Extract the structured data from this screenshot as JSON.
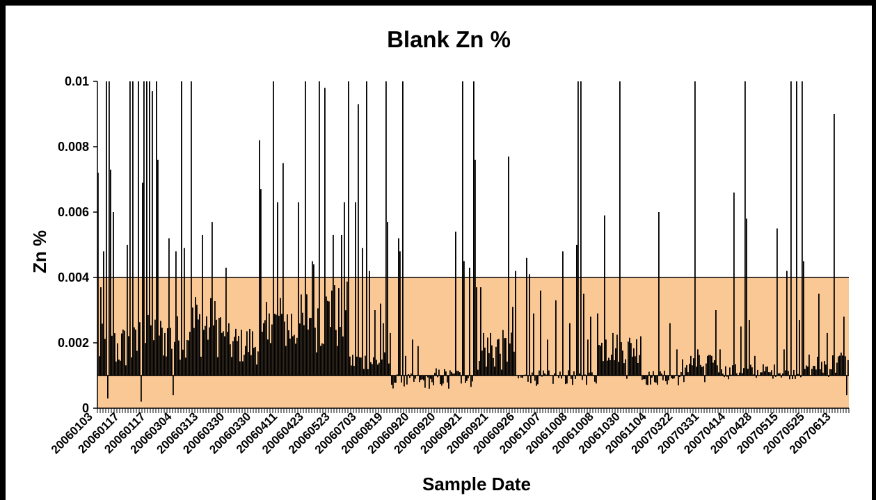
{
  "chart_data": {
    "type": "bar",
    "title": "Blank Zn %",
    "xlabel": "Sample Date",
    "ylabel": "Zn %",
    "ylim": [
      0,
      0.01
    ],
    "yticks": [
      "0",
      "0.002",
      "0.004",
      "0.006",
      "0.008",
      "0.01"
    ],
    "ytick_values": [
      0,
      0.002,
      0.004,
      0.006,
      0.008,
      0.01
    ],
    "x_tick_labels": [
      "20060103",
      "20060117",
      "20060117",
      "20060304",
      "20060313",
      "20060330",
      "20060330",
      "20060411",
      "20060423",
      "20060523",
      "20060703",
      "20060819",
      "20060920",
      "20060920",
      "20060921",
      "20060921",
      "20060926",
      "20061007",
      "20061008",
      "20061008",
      "20061030",
      "20061104",
      "20070322",
      "20070331",
      "20070414",
      "20070428",
      "20070515",
      "20070525",
      "20070613"
    ],
    "bands": [
      {
        "name": "control-limit-band",
        "from": 0,
        "to": 0.004,
        "color": "#FAC895"
      }
    ],
    "reference_lines": [
      0.001,
      0.004
    ],
    "bar_color": "#000000",
    "background_color": "#ffffff",
    "grid": false,
    "legend": "none",
    "segments": [
      {
        "base": 0.0018,
        "var": 0.0009,
        "spikes": [
          [
            0.0,
            0.0072
          ],
          [
            0.004,
            0.0037
          ],
          [
            0.008,
            0.0048
          ],
          [
            0.012,
            0.01
          ],
          [
            0.015,
            0.01
          ],
          [
            0.018,
            0.0073
          ],
          [
            0.022,
            0.006
          ],
          [
            0.013,
            0.0003
          ]
        ]
      },
      {
        "base": 0.0021,
        "var": 0.0009,
        "spikes": [
          [
            0.04,
            0.005
          ],
          [
            0.045,
            0.01
          ],
          [
            0.048,
            0.01
          ],
          [
            0.056,
            0.01
          ],
          [
            0.062,
            0.0069
          ],
          [
            0.065,
            0.01
          ],
          [
            0.068,
            0.01
          ],
          [
            0.072,
            0.01
          ],
          [
            0.075,
            0.0097
          ],
          [
            0.082,
            0.01
          ],
          [
            0.084,
            0.0076
          ],
          [
            0.06,
            0.0002
          ]
        ]
      },
      {
        "base": 0.0024,
        "var": 0.0012,
        "spikes": [
          [
            0.1,
            0.0052
          ],
          [
            0.106,
            0.0062
          ],
          [
            0.11,
            0.0048
          ],
          [
            0.116,
            0.01
          ],
          [
            0.121,
            0.0049
          ],
          [
            0.13,
            0.01
          ],
          [
            0.136,
            0.0034
          ],
          [
            0.147,
            0.0053
          ],
          [
            0.16,
            0.0057
          ],
          [
            0.105,
            0.0004
          ]
        ]
      },
      {
        "base": 0.0019,
        "var": 0.0008,
        "spikes": [
          [
            0.18,
            0.0043
          ],
          [
            0.2,
            0.0024
          ],
          [
            0.225,
            0.0082
          ],
          [
            0.227,
            0.0067
          ],
          [
            0.24,
            0.0029
          ],
          [
            0.245,
            0.01
          ],
          [
            0.252,
            0.0063
          ],
          [
            0.26,
            0.0075
          ]
        ]
      },
      {
        "base": 0.0024,
        "var": 0.0013,
        "spikes": [
          [
            0.28,
            0.0063
          ],
          [
            0.29,
            0.01
          ],
          [
            0.3,
            0.0045
          ],
          [
            0.302,
            0.0044
          ],
          [
            0.31,
            0.01
          ],
          [
            0.318,
            0.0098
          ],
          [
            0.327,
            0.0036
          ],
          [
            0.33,
            0.0053
          ],
          [
            0.34,
            0.0041
          ],
          [
            0.345,
            0.0063
          ]
        ]
      },
      {
        "base": 0.0027,
        "var": 0.0014,
        "spikes": [
          [
            0.34,
            0.0053
          ],
          [
            0.35,
            0.01
          ],
          [
            0.36,
            0.0063
          ],
          [
            0.365,
            0.0093
          ],
          [
            0.37,
            0.0049
          ],
          [
            0.375,
            0.01
          ],
          [
            0.38,
            0.0042
          ],
          [
            0.388,
            0.003
          ],
          [
            0.395,
            0.0032
          ],
          [
            0.4,
            0.0026
          ]
        ]
      },
      {
        "base": 0.0014,
        "var": 0.0004,
        "spikes": [
          [
            0.405,
            0.0057
          ],
          [
            0.404,
            0.01
          ],
          [
            0.41,
            0.0023
          ],
          [
            0.42,
            0.0052
          ],
          [
            0.422,
            0.0048
          ],
          [
            0.427,
            0.01
          ],
          [
            0.43,
            0.0016
          ],
          [
            0.44,
            0.0021
          ],
          [
            0.448,
            0.0019
          ]
        ]
      },
      {
        "base": 0.0008,
        "var": 0.0003,
        "spikes": [
          [
            0.45,
            0.0008
          ],
          [
            0.47,
            0.0007
          ],
          [
            0.49,
            0.0006
          ],
          [
            0.5,
            0.0007
          ]
        ]
      },
      {
        "base": 0.0009,
        "var": 0.0004,
        "spikes": [
          [
            0.5,
            0.0054
          ],
          [
            0.51,
            0.01
          ],
          [
            0.513,
            0.0045
          ],
          [
            0.52,
            0.0043
          ],
          [
            0.525,
            0.01
          ],
          [
            0.53,
            0.0063
          ],
          [
            0.528,
            0.0076
          ],
          [
            0.535,
            0.0037
          ],
          [
            0.54,
            0.0023
          ]
        ]
      },
      {
        "base": 0.0017,
        "var": 0.0008,
        "spikes": [
          [
            0.53,
            0.0037
          ],
          [
            0.55,
            0.0023
          ],
          [
            0.56,
            0.0021
          ],
          [
            0.575,
            0.0077
          ],
          [
            0.58,
            0.0031
          ],
          [
            0.585,
            0.0042
          ]
        ]
      },
      {
        "base": 0.0009,
        "var": 0.0003,
        "spikes": [
          [
            0.6,
            0.0046
          ],
          [
            0.603,
            0.0041
          ],
          [
            0.61,
            0.0029
          ],
          [
            0.62,
            0.0036
          ],
          [
            0.63,
            0.0021
          ],
          [
            0.64,
            0.0033
          ]
        ]
      },
      {
        "base": 0.0009,
        "var": 0.0003,
        "spikes": [
          [
            0.65,
            0.0048
          ],
          [
            0.66,
            0.0026
          ],
          [
            0.67,
            0.005
          ],
          [
            0.672,
            0.01
          ],
          [
            0.675,
            0.01
          ],
          [
            0.68,
            0.0035
          ],
          [
            0.685,
            0.0021
          ]
        ]
      },
      {
        "base": 0.0018,
        "var": 0.0006,
        "spikes": [
          [
            0.69,
            0.0028
          ],
          [
            0.7,
            0.0029
          ],
          [
            0.71,
            0.0059
          ],
          [
            0.72,
            0.0023
          ],
          [
            0.73,
            0.01
          ],
          [
            0.712,
            0.0021
          ]
        ]
      },
      {
        "base": 0.0009,
        "var": 0.0003,
        "spikes": [
          [
            0.74,
            0.0009
          ],
          [
            0.76,
            0.0022
          ],
          [
            0.78,
            0.0008
          ],
          [
            0.785,
            0.006
          ],
          [
            0.8,
            0.0026
          ],
          [
            0.82,
            0.0008
          ]
        ]
      },
      {
        "base": 0.0013,
        "var": 0.0004,
        "spikes": [
          [
            0.81,
            0.0018
          ],
          [
            0.83,
            0.0016
          ],
          [
            0.835,
            0.01
          ],
          [
            0.84,
            0.0018
          ],
          [
            0.85,
            0.0008
          ],
          [
            0.86,
            0.0016
          ],
          [
            0.865,
            0.003
          ],
          [
            0.87,
            0.0011
          ]
        ]
      },
      {
        "base": 0.0011,
        "var": 0.0003,
        "spikes": [
          [
            0.87,
            0.0018
          ],
          [
            0.89,
            0.0066
          ],
          [
            0.9,
            0.0025
          ],
          [
            0.905,
            0.01
          ],
          [
            0.908,
            0.0058
          ],
          [
            0.912,
            0.0027
          ],
          [
            0.92,
            0.0016
          ],
          [
            0.93,
            0.0011
          ]
        ]
      },
      {
        "base": 0.0011,
        "var": 0.0003,
        "spikes": [
          [
            0.94,
            0.0011
          ],
          [
            0.95,
            0.0055
          ],
          [
            0.96,
            0.0018
          ],
          [
            0.965,
            0.0042
          ],
          [
            0.97,
            0.01
          ],
          [
            0.978,
            0.01
          ],
          [
            0.982,
            0.0027
          ],
          [
            0.986,
            0.01
          ],
          [
            0.988,
            0.0045
          ]
        ]
      },
      {
        "base": 0.0013,
        "var": 0.0005,
        "spikes": [
          [
            0.99,
            0.0012
          ],
          [
            1.0,
            0.0012
          ],
          [
            1.01,
            0.0035
          ],
          [
            1.02,
            0.0023
          ],
          [
            1.03,
            0.009
          ],
          [
            1.04,
            0.0017
          ],
          [
            1.045,
            0.0028
          ],
          [
            1.048,
            0.0004
          ]
        ]
      }
    ]
  }
}
